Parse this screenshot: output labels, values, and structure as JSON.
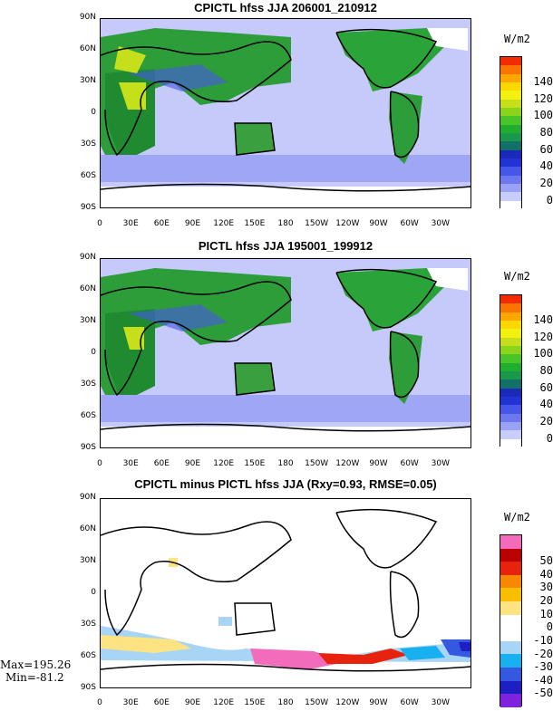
{
  "panels": [
    {
      "title": "CPICTL hfss JJA 206001_210912",
      "units": "W/m2",
      "colorbar": {
        "colors": [
          "#ffffff",
          "#c8cdfb",
          "#9aa2f5",
          "#6d78ee",
          "#4656e8",
          "#2233d6",
          "#1a2ab8",
          "#127068",
          "#19974a",
          "#1fae2e",
          "#4ac527",
          "#8ad41c",
          "#c5df1a",
          "#f3f10f",
          "#fdd800",
          "#fca600",
          "#fb7400",
          "#f22b00"
        ],
        "labels": [
          "0",
          "20",
          "40",
          "60",
          "80",
          "100",
          "120",
          "140"
        ]
      }
    },
    {
      "title": "PICTL hfss JJA 195001_199912",
      "units": "W/m2",
      "colorbar": {
        "colors": [
          "#ffffff",
          "#c8cdfb",
          "#9aa2f5",
          "#6d78ee",
          "#4656e8",
          "#2233d6",
          "#1a2ab8",
          "#127068",
          "#19974a",
          "#1fae2e",
          "#4ac527",
          "#8ad41c",
          "#c5df1a",
          "#f3f10f",
          "#fdd800",
          "#fca600",
          "#fb7400",
          "#f22b00"
        ],
        "labels": [
          "0",
          "20",
          "40",
          "60",
          "80",
          "100",
          "120",
          "140"
        ]
      }
    },
    {
      "title": "CPICTL minus PICTL hfss JJA (Rxy=0.93, RMSE=0.05)",
      "units": "W/m2",
      "colorbar": {
        "colors": [
          "#7e22e0",
          "#1d1fc4",
          "#3558e0",
          "#19b0f0",
          "#a8d4f5",
          "#ffffff",
          "#ffffff",
          "#fde382",
          "#f7bf00",
          "#f88800",
          "#e8230d",
          "#bb0000",
          "#f36cbc"
        ],
        "labels": [
          "-50",
          "-40",
          "-30",
          "-20",
          "-10",
          "0",
          "10",
          "20",
          "30",
          "40",
          "50"
        ]
      },
      "stats": {
        "max": "Max=195.26",
        "min": "Min=-81.2"
      }
    }
  ],
  "lat_labels": [
    "90N",
    "60N",
    "30N",
    "0",
    "30S",
    "60S",
    "90S"
  ],
  "lon_labels": [
    "0",
    "30E",
    "60E",
    "90E",
    "120E",
    "150E",
    "180",
    "150W",
    "120W",
    "90W",
    "60W",
    "30W"
  ]
}
